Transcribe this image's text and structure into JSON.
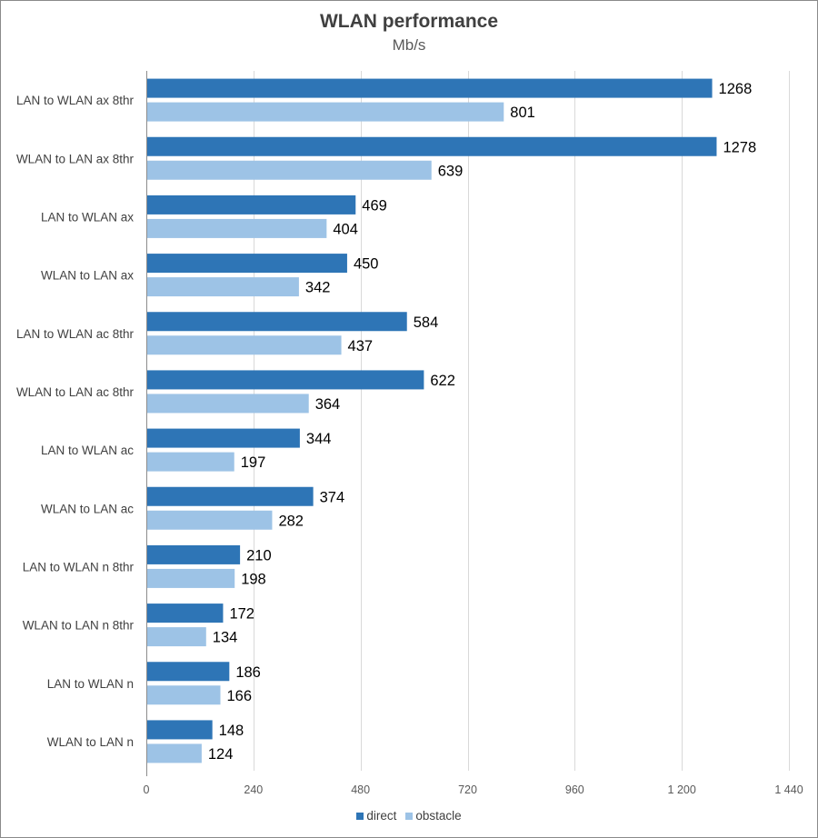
{
  "chart_data": {
    "type": "bar",
    "orientation": "horizontal",
    "title": "WLAN performance",
    "subtitle": "Mb/s",
    "xlabel": "",
    "ylabel": "",
    "xlim": [
      0,
      1440
    ],
    "xticks": [
      0,
      240,
      480,
      720,
      960,
      1200,
      1440
    ],
    "xtick_labels": [
      "0",
      "240",
      "480",
      "720",
      "960",
      "1 200",
      "1 440"
    ],
    "grid": "vertical",
    "legend_position": "bottom",
    "categories": [
      "LAN to WLAN ax 8thr",
      "WLAN to LAN ax 8thr",
      "LAN to WLAN ax",
      "WLAN to LAN ax",
      "LAN to WLAN ac 8thr",
      "WLAN to LAN ac 8thr",
      "LAN to WLAN ac",
      "WLAN to LAN ac",
      "LAN to WLAN n 8thr",
      "WLAN to LAN n 8thr",
      "LAN to WLAN n",
      "WLAN to LAN n"
    ],
    "series": [
      {
        "name": "direct",
        "color": "#2E75B6",
        "values": [
          1268,
          1278,
          469,
          450,
          584,
          622,
          344,
          374,
          210,
          172,
          186,
          148
        ]
      },
      {
        "name": "obstacle",
        "color": "#9DC3E6",
        "values": [
          801,
          639,
          404,
          342,
          437,
          364,
          197,
          282,
          198,
          134,
          166,
          124
        ]
      }
    ]
  }
}
